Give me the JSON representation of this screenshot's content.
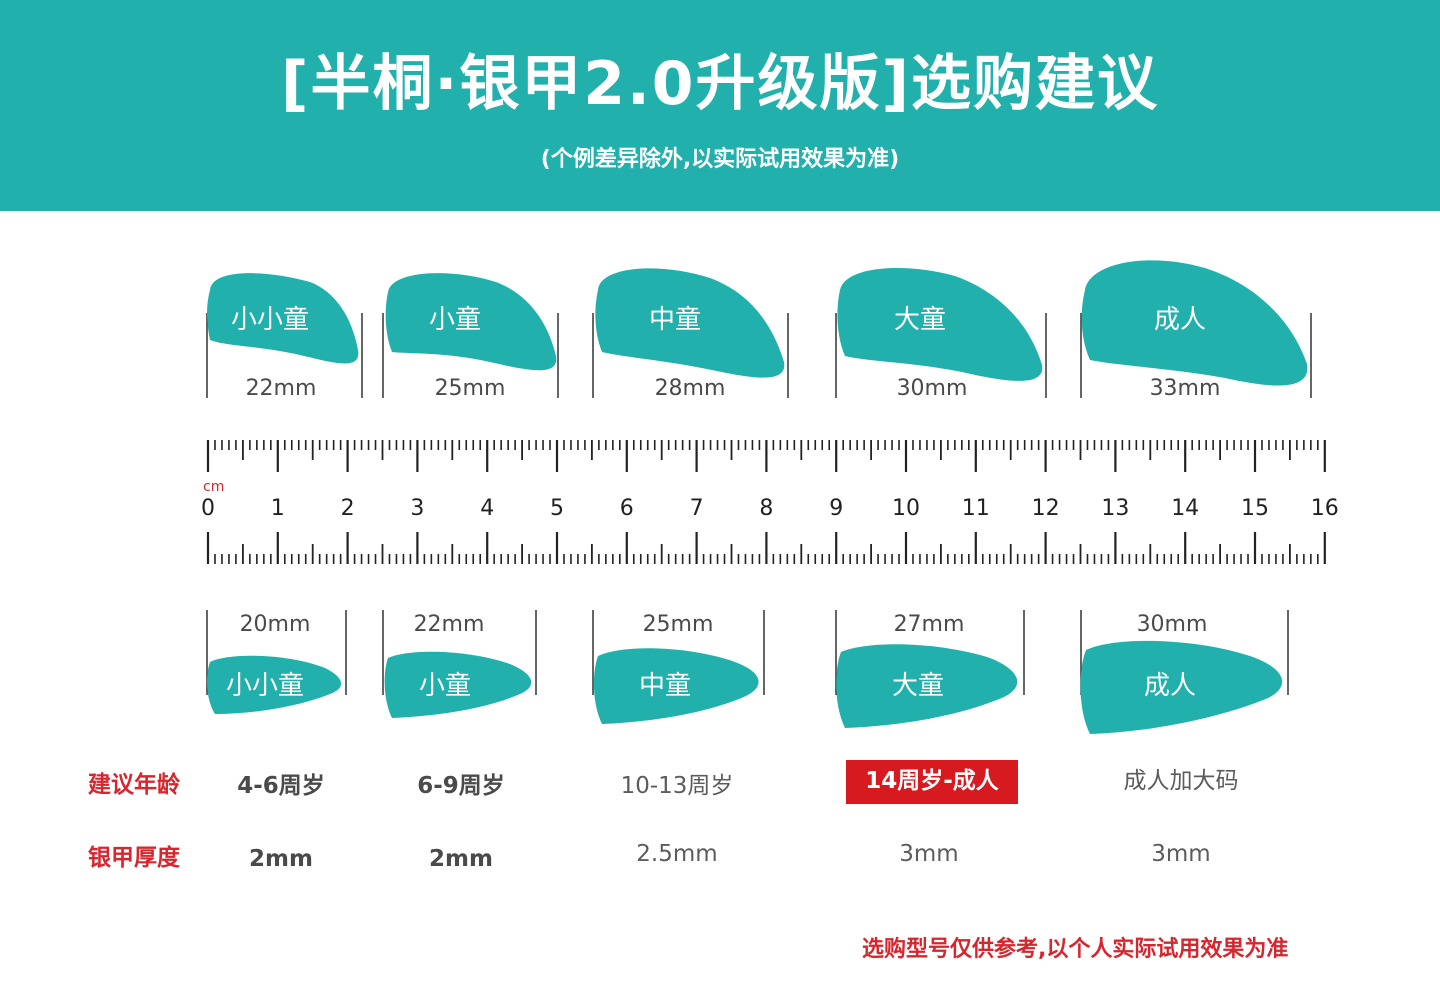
{
  "header": {
    "title": "[半桐·银甲2.0升级版]选购建议",
    "subtitle": "(个例差异除外,以实际试用效果为准)"
  },
  "colors": {
    "teal": "#22b0ad",
    "accent_red": "#d6262e",
    "highlight_bg": "#d71920"
  },
  "ruler": {
    "unit": "cm",
    "labels": [
      "0",
      "1",
      "2",
      "3",
      "4",
      "5",
      "6",
      "7",
      "8",
      "9",
      "10",
      "11",
      "12",
      "13",
      "14",
      "15",
      "16"
    ]
  },
  "top_row": [
    {
      "name": "小小童",
      "size": "22mm"
    },
    {
      "name": "小童",
      "size": "25mm"
    },
    {
      "name": "中童",
      "size": "28mm"
    },
    {
      "name": "大童",
      "size": "30mm"
    },
    {
      "name": "成人",
      "size": "33mm"
    }
  ],
  "bottom_row": [
    {
      "name": "小小童",
      "size": "20mm"
    },
    {
      "name": "小童",
      "size": "22mm"
    },
    {
      "name": "中童",
      "size": "25mm"
    },
    {
      "name": "大童",
      "size": "27mm"
    },
    {
      "name": "成人",
      "size": "30mm"
    }
  ],
  "table": {
    "age_label": "建议年龄",
    "thickness_label": "银甲厚度",
    "ages": [
      "4-6周岁",
      "6-9周岁",
      "10-13周岁",
      "14周岁-成人",
      "成人加大码"
    ],
    "thickness": [
      "2mm",
      "2mm",
      "2.5mm",
      "3mm",
      "3mm"
    ]
  },
  "footnote": "选购型号仅供参考,以个人实际试用效果为准"
}
